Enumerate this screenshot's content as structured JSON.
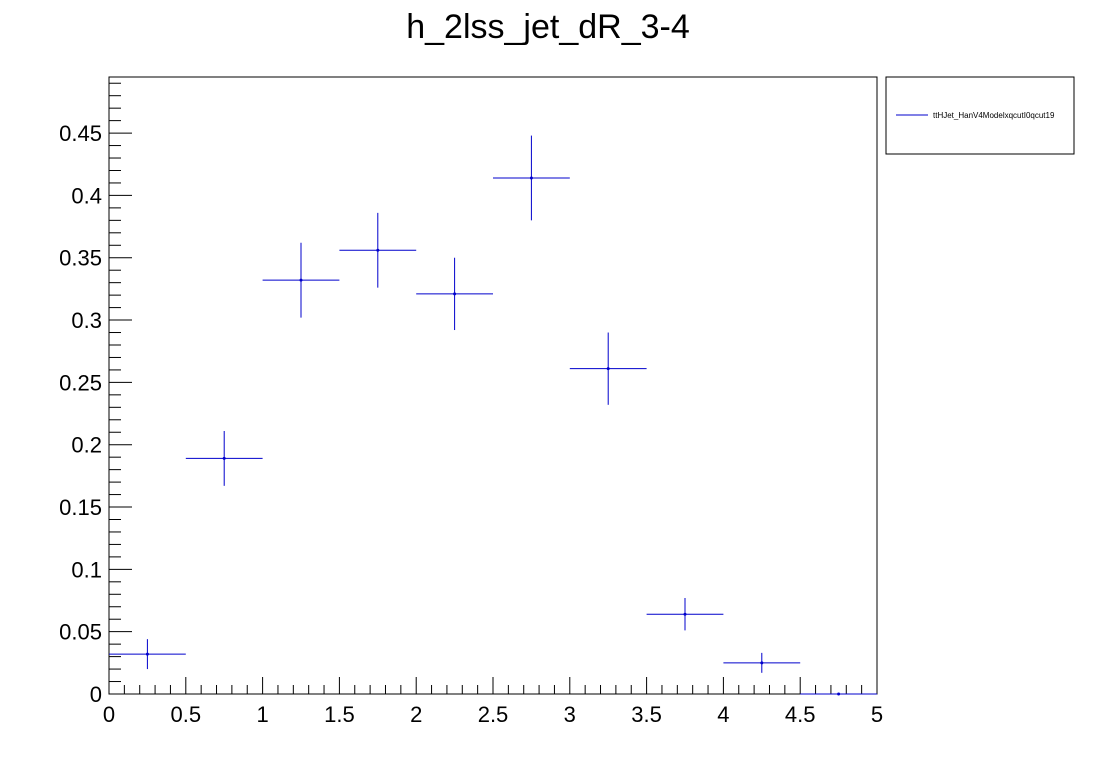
{
  "chart_data": {
    "type": "scatter",
    "title": "h_2lss_jet_dR_3-4",
    "xlim": [
      0,
      5
    ],
    "ylim": [
      0,
      0.495
    ],
    "x_ticks": [
      "0",
      "0.5",
      "1",
      "1.5",
      "2",
      "2.5",
      "3",
      "3.5",
      "4",
      "4.5",
      "5"
    ],
    "y_ticks": [
      "0",
      "0.05",
      "0.1",
      "0.15",
      "0.2",
      "0.25",
      "0.3",
      "0.35",
      "0.4",
      "0.45"
    ],
    "grid": false,
    "legend_position": "top-right",
    "series": [
      {
        "name": "ttHJet_HanV4ModelxqcutI0qcut19",
        "color": "#0000cc",
        "points": [
          {
            "x_low": 0.0,
            "x_high": 0.5,
            "y": 0.032,
            "err": 0.012
          },
          {
            "x_low": 0.5,
            "x_high": 1.0,
            "y": 0.189,
            "err": 0.022
          },
          {
            "x_low": 1.0,
            "x_high": 1.5,
            "y": 0.332,
            "err": 0.03
          },
          {
            "x_low": 1.5,
            "x_high": 2.0,
            "y": 0.356,
            "err": 0.03
          },
          {
            "x_low": 2.0,
            "x_high": 2.5,
            "y": 0.321,
            "err": 0.029
          },
          {
            "x_low": 2.5,
            "x_high": 3.0,
            "y": 0.414,
            "err": 0.034
          },
          {
            "x_low": 3.0,
            "x_high": 3.5,
            "y": 0.261,
            "err": 0.029
          },
          {
            "x_low": 3.5,
            "x_high": 4.0,
            "y": 0.064,
            "err": 0.013
          },
          {
            "x_low": 4.0,
            "x_high": 4.5,
            "y": 0.025,
            "err": 0.008
          },
          {
            "x_low": 4.5,
            "x_high": 5.0,
            "y": 0.0,
            "err": 0.0
          }
        ]
      }
    ]
  }
}
